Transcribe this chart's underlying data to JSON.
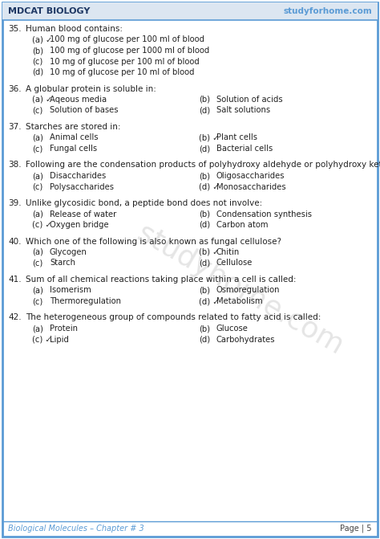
{
  "header_left": "MDCAT BIOLOGY",
  "header_right": "studyforhome.com",
  "footer_left": "Biological Molecules – Chapter # 3",
  "footer_right": "Page | 5",
  "bg_color": "#ffffff",
  "border_color": "#5b9bd5",
  "header_bg": "#dce6f1",
  "header_text_color": "#1f3864",
  "footer_text_color": "#5b9bd5",
  "watermark_text": "studyhome.com",
  "questions": [
    {
      "num": "35.",
      "text": "Human blood contains:",
      "options_single": [
        {
          "label": "(a)",
          "tick": true,
          "text": "100 mg of glucose per 100 ml of blood"
        },
        {
          "label": "(b)",
          "tick": false,
          "text": "100 mg of glucose per 1000 ml of blood"
        },
        {
          "label": "(c)",
          "tick": false,
          "text": "10 mg of glucose per 100 ml of blood"
        },
        {
          "label": "(d)",
          "tick": false,
          "text": "10 mg of glucose per 10 ml of blood"
        }
      ],
      "two_col": false
    },
    {
      "num": "36.",
      "text": "A globular protein is soluble in:",
      "options_two": [
        [
          {
            "label": "(a)",
            "tick": true,
            "text": "Aqeous media"
          },
          {
            "label": "(b)",
            "tick": false,
            "text": "Solution of acids"
          }
        ],
        [
          {
            "label": "(c)",
            "tick": false,
            "text": "Solution of bases"
          },
          {
            "label": "(d)",
            "tick": false,
            "text": "Salt solutions"
          }
        ]
      ],
      "two_col": true
    },
    {
      "num": "37.",
      "text": "Starches are stored in:",
      "options_two": [
        [
          {
            "label": "(a)",
            "tick": false,
            "text": "Animal cells"
          },
          {
            "label": "(b)",
            "tick": true,
            "text": "Plant cells"
          }
        ],
        [
          {
            "label": "(c)",
            "tick": false,
            "text": "Fungal cells"
          },
          {
            "label": "(d)",
            "tick": false,
            "text": "Bacterial cells"
          }
        ]
      ],
      "two_col": true
    },
    {
      "num": "38.",
      "text": "Following are the condensation products of polyhydroxy aldehyde or polyhydroxy ketone subunits, EXCEPT:",
      "options_two": [
        [
          {
            "label": "(a)",
            "tick": false,
            "text": "Disaccharides"
          },
          {
            "label": "(b)",
            "tick": false,
            "text": "Oligosaccharides"
          }
        ],
        [
          {
            "label": "(c)",
            "tick": false,
            "text": "Polysaccharides"
          },
          {
            "label": "(d)",
            "tick": true,
            "text": "Monosaccharides"
          }
        ]
      ],
      "two_col": true
    },
    {
      "num": "39.",
      "text": "Unlike glycosidic bond, a peptide bond does not involve:",
      "options_two": [
        [
          {
            "label": "(a)",
            "tick": false,
            "text": "Release of water"
          },
          {
            "label": "(b)",
            "tick": false,
            "text": "Condensation synthesis"
          }
        ],
        [
          {
            "label": "(c)",
            "tick": true,
            "text": "Oxygen bridge"
          },
          {
            "label": "(d)",
            "tick": false,
            "text": "Carbon atom"
          }
        ]
      ],
      "two_col": true
    },
    {
      "num": "40.",
      "text": "Which one of the following is also known as fungal cellulose?",
      "options_two": [
        [
          {
            "label": "(a)",
            "tick": false,
            "text": "Glycogen"
          },
          {
            "label": "(b)",
            "tick": true,
            "text": "Chitin"
          }
        ],
        [
          {
            "label": "(c)",
            "tick": false,
            "text": "Starch"
          },
          {
            "label": "(d)",
            "tick": false,
            "text": "Cellulose"
          }
        ]
      ],
      "two_col": true
    },
    {
      "num": "41.",
      "text": "Sum of all chemical reactions taking place within a cell is called:",
      "options_two": [
        [
          {
            "label": "(a)",
            "tick": false,
            "text": "Isomerism"
          },
          {
            "label": "(b)",
            "tick": false,
            "text": "Osmoregulation"
          }
        ],
        [
          {
            "label": "(c)",
            "tick": false,
            "text": "Thermoregulation"
          },
          {
            "label": "(d)",
            "tick": true,
            "text": "Metabolism"
          }
        ]
      ],
      "two_col": true
    },
    {
      "num": "42.",
      "text": "The heterogeneous group of compounds related to fatty acid is called:",
      "options_two": [
        [
          {
            "label": "(a)",
            "tick": false,
            "text": "Protein"
          },
          {
            "label": "(b)",
            "tick": false,
            "text": "Glucose"
          }
        ],
        [
          {
            "label": "(c)",
            "tick": true,
            "text": "Lipid"
          },
          {
            "label": "(d)",
            "tick": false,
            "text": "Carbohydrates"
          }
        ]
      ],
      "two_col": true
    }
  ]
}
